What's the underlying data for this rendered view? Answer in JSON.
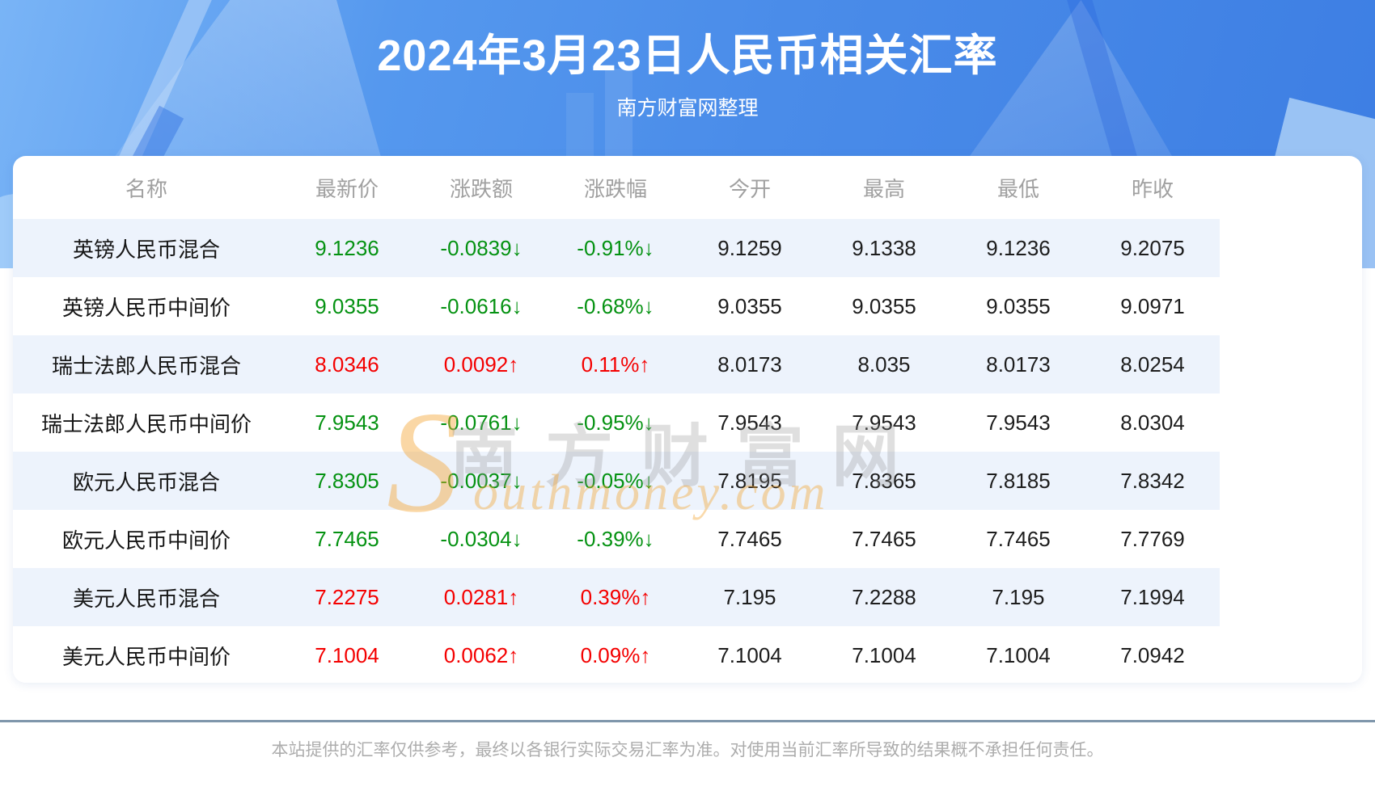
{
  "header": {
    "title": "2024年3月23日人民币相关汇率",
    "subtitle": "南方财富网整理"
  },
  "watermark": {
    "initial": "S",
    "cn": "南方财富网",
    "en": "outhmoney.com",
    "orange": "#f4a638"
  },
  "table": {
    "columns": [
      "名称",
      "最新价",
      "涨跌额",
      "涨跌幅",
      "今开",
      "最高",
      "最低",
      "昨收"
    ],
    "colors": {
      "up": "#f40000",
      "down": "#059212",
      "stripe": "#edf3fc",
      "header_text": "#a0a0a0"
    },
    "rows": [
      {
        "name": "英镑人民币混合",
        "latest": "9.1236",
        "change": "-0.0839↓",
        "pct": "-0.91%↓",
        "open": "9.1259",
        "high": "9.1338",
        "low": "9.1236",
        "prev": "9.2075",
        "direction": "down"
      },
      {
        "name": "英镑人民币中间价",
        "latest": "9.0355",
        "change": "-0.0616↓",
        "pct": "-0.68%↓",
        "open": "9.0355",
        "high": "9.0355",
        "low": "9.0355",
        "prev": "9.0971",
        "direction": "down"
      },
      {
        "name": "瑞士法郎人民币混合",
        "latest": "8.0346",
        "change": "0.0092↑",
        "pct": "0.11%↑",
        "open": "8.0173",
        "high": "8.035",
        "low": "8.0173",
        "prev": "8.0254",
        "direction": "up"
      },
      {
        "name": "瑞士法郎人民币中间价",
        "latest": "7.9543",
        "change": "-0.0761↓",
        "pct": "-0.95%↓",
        "open": "7.9543",
        "high": "7.9543",
        "low": "7.9543",
        "prev": "8.0304",
        "direction": "down"
      },
      {
        "name": "欧元人民币混合",
        "latest": "7.8305",
        "change": "-0.0037↓",
        "pct": "-0.05%↓",
        "open": "7.8195",
        "high": "7.8365",
        "low": "7.8185",
        "prev": "7.8342",
        "direction": "down"
      },
      {
        "name": "欧元人民币中间价",
        "latest": "7.7465",
        "change": "-0.0304↓",
        "pct": "-0.39%↓",
        "open": "7.7465",
        "high": "7.7465",
        "low": "7.7465",
        "prev": "7.7769",
        "direction": "down"
      },
      {
        "name": "美元人民币混合",
        "latest": "7.2275",
        "change": "0.0281↑",
        "pct": "0.39%↑",
        "open": "7.195",
        "high": "7.2288",
        "low": "7.195",
        "prev": "7.1994",
        "direction": "up"
      },
      {
        "name": "美元人民币中间价",
        "latest": "7.1004",
        "change": "0.0062↑",
        "pct": "0.09%↑",
        "open": "7.1004",
        "high": "7.1004",
        "low": "7.1004",
        "prev": "7.0942",
        "direction": "up"
      }
    ]
  },
  "footer": {
    "disclaimer": "本站提供的汇率仅供参考，最终以各银行实际交易汇率为准。对使用当前汇率所导致的结果概不承担任何责任。"
  }
}
